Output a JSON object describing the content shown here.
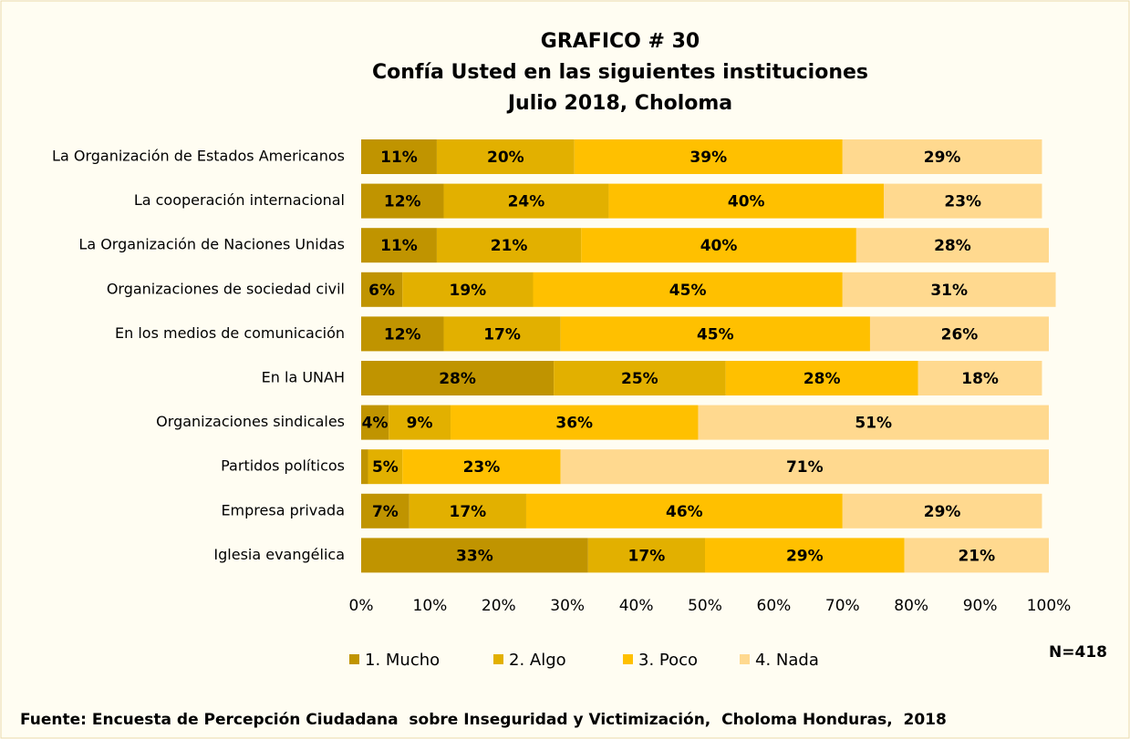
{
  "chart_data": {
    "type": "stacked-bar-horizontal",
    "title": "GRAFICO # 30",
    "subtitle": [
      "Confía Usted en las siguientes instituciones",
      "Julio 2018, Choloma"
    ],
    "categories": [
      "La Organización de Estados Americanos",
      "La cooperación internacional",
      "La Organización de Naciones Unidas",
      "Organizaciones de sociedad civil",
      "En los medios de comunicación",
      "En la UNAH",
      "Organizaciones sindicales",
      "Partidos políticos",
      "Empresa privada",
      "Iglesia evangélica"
    ],
    "series": [
      {
        "name": "1. Mucho",
        "color": "#c09400",
        "values": [
          11,
          12,
          11,
          6,
          12,
          28,
          4,
          1,
          7,
          33
        ],
        "value_labels": [
          "11%",
          "12%",
          "11%",
          "6%",
          "12%",
          "28%",
          "4%",
          null,
          "7%",
          "33%"
        ]
      },
      {
        "name": "2. Algo",
        "color": "#e2b000",
        "values": [
          20,
          24,
          21,
          19,
          17,
          25,
          9,
          5,
          17,
          17
        ],
        "value_labels": [
          "20%",
          "24%",
          "21%",
          "19%",
          "17%",
          "25%",
          "9%",
          "5%",
          "17%",
          "17%"
        ]
      },
      {
        "name": "3. Poco",
        "color": "#ffc000",
        "values": [
          39,
          40,
          40,
          45,
          45,
          28,
          36,
          23,
          46,
          29
        ],
        "value_labels": [
          "39%",
          "40%",
          "40%",
          "45%",
          "45%",
          "28%",
          "36%",
          "23%",
          "46%",
          "29%"
        ]
      },
      {
        "name": "4. Nada",
        "color": "#ffd98f",
        "values": [
          29,
          23,
          28,
          31,
          26,
          18,
          51,
          71,
          29,
          21
        ],
        "value_labels": [
          "29%",
          "23%",
          "28%",
          "31%",
          "26%",
          "18%",
          "51%",
          "71%",
          "29%",
          "21%"
        ]
      }
    ],
    "xlim": [
      0,
      100
    ],
    "xticks": [
      {
        "value": 0,
        "label": "0%"
      },
      {
        "value": 10,
        "label": "10%"
      },
      {
        "value": 20,
        "label": "20%"
      },
      {
        "value": 30,
        "label": "30%"
      },
      {
        "value": 40,
        "label": "40%"
      },
      {
        "value": 50,
        "label": "50%"
      },
      {
        "value": 60,
        "label": "60%"
      },
      {
        "value": 70,
        "label": "70%"
      },
      {
        "value": 80,
        "label": "80%"
      },
      {
        "value": 90,
        "label": "90%"
      },
      {
        "value": 100,
        "label": "100%"
      }
    ],
    "annotation": "N=418",
    "source": "Fuente: Encuesta de Percepción Ciudadana  sobre Inseguridad y Victimización,  Choloma Honduras,  2018"
  }
}
